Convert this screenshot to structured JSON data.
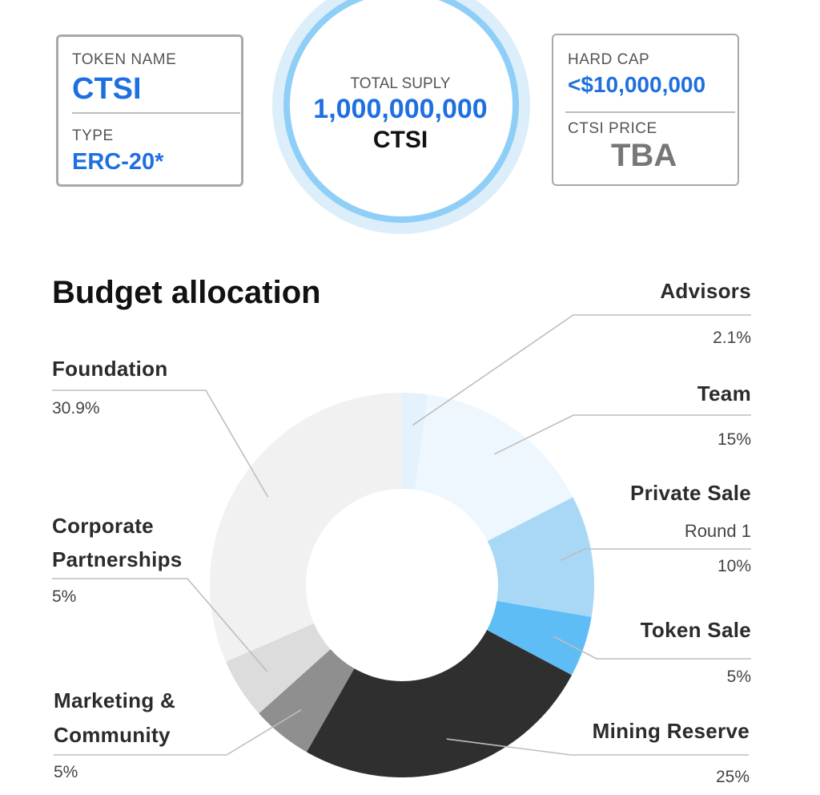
{
  "token": {
    "name_label": "TOKEN NAME",
    "name_value": "CTSI",
    "type_label": "TYPE",
    "type_value": "ERC-20*"
  },
  "supply": {
    "label": "TOTAL SUPLY",
    "value": "1,000,000,000",
    "unit": "CTSI"
  },
  "cap": {
    "hard_cap_label": "HARD CAP",
    "hard_cap_value": "<$10,000,000",
    "price_label": "CTSI PRICE",
    "price_value": "TBA"
  },
  "chart_data": {
    "type": "pie",
    "title": "Budget allocation",
    "slices": [
      {
        "label": "Advisors",
        "value": 2.1,
        "pct_text": "2.1%",
        "color": "#e3f2fd"
      },
      {
        "label": "Team",
        "value": 15,
        "pct_text": "15%",
        "color": "#eff7fe"
      },
      {
        "label": "Private Sale",
        "sublabel": "Round 1",
        "value": 10,
        "pct_text": "10%",
        "color": "#a9d8f7"
      },
      {
        "label": "Token Sale",
        "value": 5,
        "pct_text": "5%",
        "color": "#5fbdf5"
      },
      {
        "label": "Mining Reserve",
        "value": 25,
        "pct_text": "25%",
        "color": "#2f2f2f"
      },
      {
        "label": "Marketing &",
        "label2": "Community",
        "value": 5,
        "pct_text": "5%",
        "color": "#8f8f8f"
      },
      {
        "label": "Corporate",
        "label2": "Partnerships",
        "value": 5,
        "pct_text": "5%",
        "color": "#dcdcdc"
      },
      {
        "label": "Foundation",
        "value": 30.9,
        "pct_text": "30.9%",
        "color": "#f1f1f1"
      }
    ]
  }
}
